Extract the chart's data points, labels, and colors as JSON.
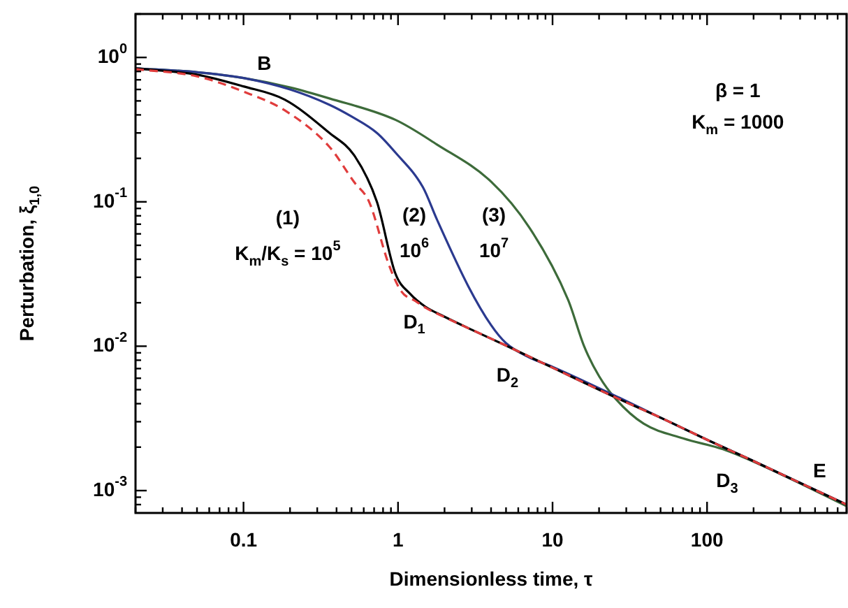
{
  "chart_data": {
    "type": "line",
    "xlabel": "Dimensionless time, τ",
    "ylabel": "Perturbation, ξ$_{1,0}$",
    "log": "xy",
    "marker": "none",
    "xlim": [
      0.02,
      800
    ],
    "ylim": [
      0.0007,
      2
    ],
    "xticks": [
      {
        "value": 0.02,
        "label": null
      },
      {
        "value": 0.03,
        "label": null
      },
      {
        "value": 0.04,
        "label": null
      },
      {
        "value": 0.05,
        "label": null
      },
      {
        "value": 0.06,
        "label": null
      },
      {
        "value": 0.07,
        "label": null
      },
      {
        "value": 0.08,
        "label": null
      },
      {
        "value": 0.09,
        "label": null
      },
      0.1,
      {
        "value": 0.2,
        "label": null
      },
      {
        "value": 0.3,
        "label": null
      },
      {
        "value": 0.4,
        "label": null
      },
      {
        "value": 0.5,
        "label": null
      },
      {
        "value": 0.6,
        "label": null
      },
      {
        "value": 0.7,
        "label": null
      },
      {
        "value": 0.8,
        "label": null
      },
      {
        "value": 0.9,
        "label": null
      },
      1,
      {
        "value": 2,
        "label": null
      },
      {
        "value": 3,
        "label": null
      },
      {
        "value": 4,
        "label": null
      },
      {
        "value": 5,
        "label": null
      },
      {
        "value": 6,
        "label": null
      },
      {
        "value": 7,
        "label": null
      },
      {
        "value": 8,
        "label": null
      },
      {
        "value": 9,
        "label": null
      },
      10,
      {
        "value": 20,
        "label": null
      },
      {
        "value": 30,
        "label": null
      },
      {
        "value": 40,
        "label": null
      },
      {
        "value": 50,
        "label": null
      },
      {
        "value": 60,
        "label": null
      },
      {
        "value": 70,
        "label": null
      },
      {
        "value": 80,
        "label": null
      },
      {
        "value": 90,
        "label": null
      },
      100,
      {
        "value": 200,
        "label": null
      },
      {
        "value": 300,
        "label": null
      },
      {
        "value": 400,
        "label": null
      },
      {
        "value": 500,
        "label": null
      },
      {
        "value": 600,
        "label": null
      },
      {
        "value": 700,
        "label": null
      },
      {
        "value": 800,
        "label": null
      }
    ],
    "yticks": [
      {
        "value": 0.0008,
        "label": null
      },
      {
        "value": 0.0009,
        "label": null
      },
      {
        "value": 0.001,
        "label": "10$^{-3}$"
      },
      {
        "value": 0.002,
        "label": null
      },
      {
        "value": 0.003,
        "label": null
      },
      {
        "value": 0.004,
        "label": null
      },
      {
        "value": 0.005,
        "label": null
      },
      {
        "value": 0.006,
        "label": null
      },
      {
        "value": 0.007,
        "label": null
      },
      {
        "value": 0.008,
        "label": null
      },
      {
        "value": 0.009,
        "label": null
      },
      {
        "value": 0.01,
        "label": "10$^{-2}$"
      },
      {
        "value": 0.02,
        "label": null
      },
      {
        "value": 0.03,
        "label": null
      },
      {
        "value": 0.04,
        "label": null
      },
      {
        "value": 0.05,
        "label": null
      },
      {
        "value": 0.06,
        "label": null
      },
      {
        "value": 0.07,
        "label": null
      },
      {
        "value": 0.08,
        "label": null
      },
      {
        "value": 0.09,
        "label": null
      },
      {
        "value": 0.1,
        "label": "10$^{-1}$"
      },
      {
        "value": 0.2,
        "label": null
      },
      {
        "value": 0.3,
        "label": null
      },
      {
        "value": 0.4,
        "label": null
      },
      {
        "value": 0.5,
        "label": null
      },
      {
        "value": 0.6,
        "label": null
      },
      {
        "value": 0.7,
        "label": null
      },
      {
        "value": 0.8,
        "label": null
      },
      {
        "value": 0.9,
        "label": null
      },
      {
        "value": 1,
        "label": "10$^{0}$"
      },
      {
        "value": 2,
        "label": null
      }
    ],
    "series": [
      {
        "color": "#e03c3c",
        "line_style": "dashed",
        "x": [
          0.02,
          0.05,
          0.1,
          0.185,
          0.36,
          0.52,
          0.65,
          0.87,
          1.05,
          1.3,
          1.5,
          2,
          3,
          5,
          10,
          27,
          50,
          100,
          200,
          400,
          800
        ],
        "values": [
          0.83,
          0.74,
          0.58,
          0.43,
          0.24,
          0.137,
          0.1,
          0.037,
          0.024,
          0.0205,
          0.0185,
          0.0159,
          0.013,
          0.0101,
          0.0071,
          0.0043,
          0.0032,
          0.00225,
          0.0016,
          0.00113,
          0.0008
        ]
      },
      {
        "color": "#000000",
        "x": [
          0.02,
          0.05,
          0.1,
          0.185,
          0.36,
          0.52,
          0.73,
          0.96,
          1.2,
          1.5,
          2,
          3,
          5,
          10,
          27,
          50,
          100,
          200,
          400,
          800
        ],
        "values": [
          0.84,
          0.76,
          0.63,
          0.51,
          0.3,
          0.21,
          0.1,
          0.032,
          0.023,
          0.0188,
          0.016,
          0.013,
          0.0101,
          0.0071,
          0.0043,
          0.0032,
          0.00225,
          0.0016,
          0.00113,
          0.0008
        ]
      },
      {
        "color": "#2b3a8f",
        "x": [
          0.02,
          0.05,
          0.1,
          0.2,
          0.36,
          0.5,
          0.73,
          0.96,
          1.45,
          1.78,
          2.85,
          4,
          5,
          7,
          10,
          27,
          50,
          100,
          200,
          400,
          800
        ],
        "values": [
          0.84,
          0.79,
          0.72,
          0.6,
          0.47,
          0.39,
          0.3,
          0.22,
          0.126,
          0.076,
          0.026,
          0.014,
          0.0105,
          0.0084,
          0.0072,
          0.0044,
          0.0032,
          0.00225,
          0.0016,
          0.00113,
          0.0008
        ]
      },
      {
        "color": "#3d6b3a",
        "x": [
          0.02,
          0.05,
          0.1,
          0.2,
          0.36,
          0.96,
          1.78,
          4,
          7.1,
          12.6,
          16,
          20,
          25.7,
          39,
          70,
          133,
          300,
          800
        ],
        "values": [
          0.84,
          0.79,
          0.72,
          0.62,
          0.52,
          0.37,
          0.25,
          0.138,
          0.066,
          0.021,
          0.01,
          0.0062,
          0.0043,
          0.0029,
          0.0023,
          0.0019,
          0.0013,
          0.00078
        ]
      }
    ],
    "annotations": [
      "B",
      "(1)",
      "K$_{m}$/K$_{s}$ = 10$^{5}$",
      "(2)",
      "10$^{6}$",
      "(3)",
      "10$^{7}$",
      "D$_{1}$",
      "D$_{2}$",
      "D$_{3}$",
      "E",
      "β = 1",
      "K$_{m}$ = 1000"
    ]
  }
}
